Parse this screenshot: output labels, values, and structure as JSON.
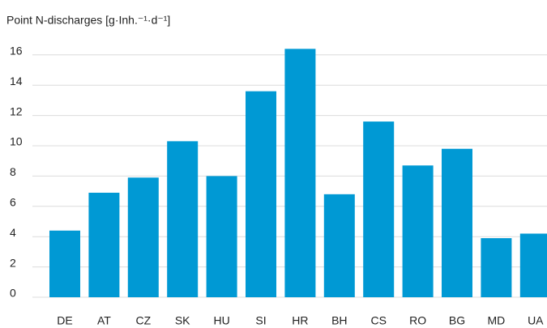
{
  "chart_data": {
    "type": "bar",
    "title": "Point N-discharges [g·Inh.⁻¹·d⁻¹]",
    "categories": [
      "DE",
      "AT",
      "CZ",
      "SK",
      "HU",
      "SI",
      "HR",
      "BH",
      "CS",
      "RO",
      "BG",
      "MD",
      "UA"
    ],
    "values": [
      4.4,
      6.9,
      7.9,
      10.3,
      8.0,
      13.6,
      16.4,
      6.8,
      11.6,
      8.7,
      9.8,
      3.9,
      4.2
    ],
    "color": "#0099d4",
    "ylim": [
      0,
      17
    ],
    "yticks": [
      0,
      2,
      4,
      6,
      8,
      10,
      12,
      14,
      16
    ],
    "grid": true
  }
}
